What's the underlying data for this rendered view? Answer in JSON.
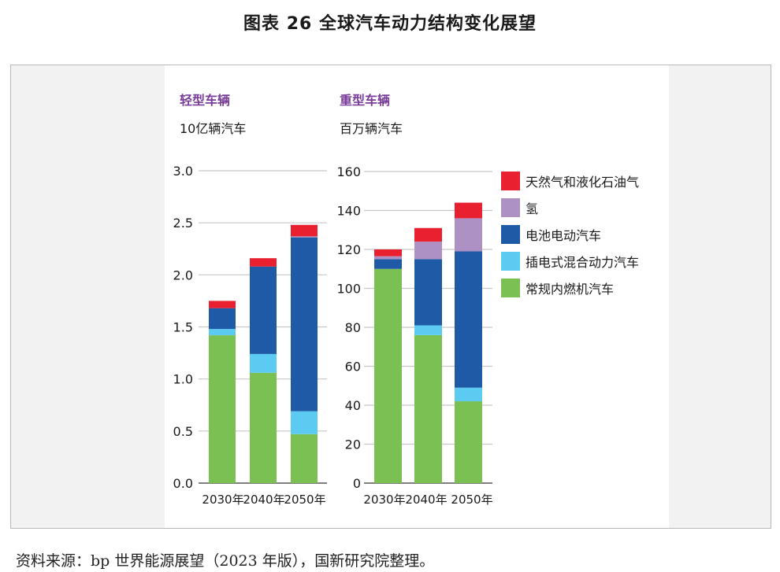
{
  "figure_title": "图表 26  全球汽车动力结构变化展望",
  "source_note": "资料来源：bp 世界能源展望（2023 年版），国新研究院整理。",
  "colors": {
    "ice": "#7bc053",
    "phev": "#5ccbf2",
    "bev": "#1e5aa6",
    "hydrogen": "#ad91c4",
    "gas": "#e8202f",
    "panel_title": "#7a3c9a",
    "gridline": "#c7c7c7"
  },
  "legend": {
    "items": [
      {
        "key": "gas",
        "label": "天然气和液化石油气"
      },
      {
        "key": "hydrogen",
        "label": "氢"
      },
      {
        "key": "bev",
        "label": "电池电动汽车"
      },
      {
        "key": "phev",
        "label": "插电式混合动力汽车"
      },
      {
        "key": "ice",
        "label": "常规内燃机汽车"
      }
    ]
  },
  "chart_data": [
    {
      "type": "bar",
      "stacked": true,
      "title": "轻型车辆",
      "ylabel": "10亿辆汽车",
      "categories": [
        "2030年",
        "2040年",
        "2050年"
      ],
      "ylim": [
        0,
        3.0
      ],
      "yticks": [
        0.0,
        0.5,
        1.0,
        1.5,
        2.0,
        2.5,
        3.0
      ],
      "ytick_labels": [
        "0.0",
        "0.5",
        "1.0",
        "1.5",
        "2.0",
        "2.5",
        "3.0"
      ],
      "grid": true,
      "series": [
        {
          "name": "常规内燃机汽车",
          "key": "ice",
          "values": [
            1.42,
            1.06,
            0.47
          ]
        },
        {
          "name": "插电式混合动力汽车",
          "key": "phev",
          "values": [
            0.06,
            0.18,
            0.22
          ]
        },
        {
          "name": "电池电动汽车",
          "key": "bev",
          "values": [
            0.2,
            0.84,
            1.67
          ]
        },
        {
          "name": "氢",
          "key": "hydrogen",
          "values": [
            0.0,
            0.0,
            0.01
          ]
        },
        {
          "name": "天然气和液化石油气",
          "key": "gas",
          "values": [
            0.07,
            0.08,
            0.11
          ]
        }
      ]
    },
    {
      "type": "bar",
      "stacked": true,
      "title": "重型车辆",
      "ylabel": "百万辆汽车",
      "categories": [
        "2030年",
        "2040年",
        "2050年"
      ],
      "ylim": [
        0,
        160
      ],
      "yticks": [
        0,
        20,
        40,
        60,
        80,
        100,
        120,
        140,
        160
      ],
      "ytick_labels": [
        "0",
        "20",
        "40",
        "60",
        "80",
        "100",
        "120",
        "140",
        "160"
      ],
      "grid": true,
      "series": [
        {
          "name": "常规内燃机汽车",
          "key": "ice",
          "values": [
            110,
            76,
            42
          ]
        },
        {
          "name": "插电式混合动力汽车",
          "key": "phev",
          "values": [
            0,
            5,
            7
          ]
        },
        {
          "name": "电池电动汽车",
          "key": "bev",
          "values": [
            5,
            34,
            70
          ]
        },
        {
          "name": "氢",
          "key": "hydrogen",
          "values": [
            1.5,
            9,
            17
          ]
        },
        {
          "name": "天然气和液化石油气",
          "key": "gas",
          "values": [
            3.5,
            7,
            8
          ]
        }
      ]
    }
  ]
}
